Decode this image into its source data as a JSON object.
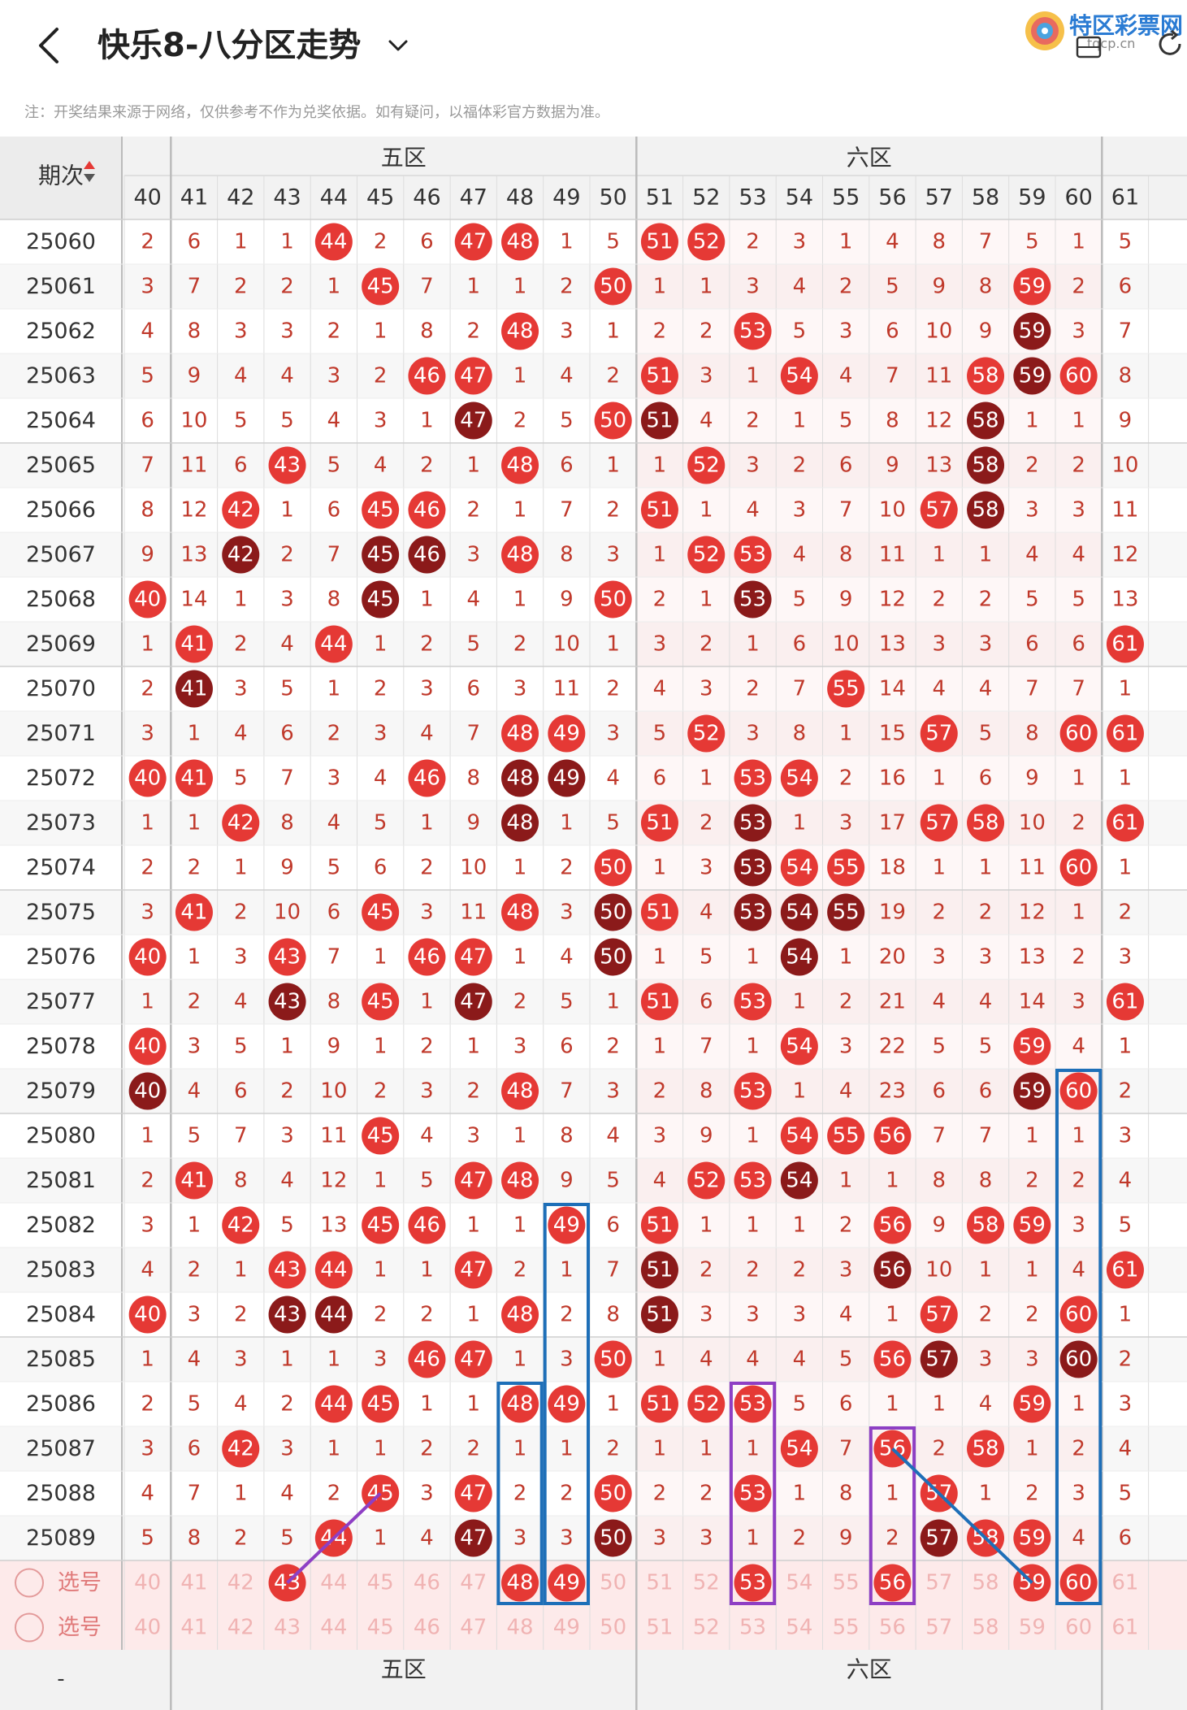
{
  "header": {
    "title": "快乐8-八分区走势",
    "back_icon": "chevron-left-icon",
    "dropdown_icon": "chevron-down-icon",
    "logo_text": "特区彩票网",
    "logo_sub": "tqcp.cn",
    "share_icon": "share-icon",
    "refresh_icon": "refresh-icon"
  },
  "note": "注：开奖结果来源于网络，仅供参考不作为兑奖依据。如有疑问，以福体彩官方数据为准。",
  "table": {
    "issue_header": "期次",
    "zone5_label": "五区",
    "zone6_label": "六区",
    "select_label": "选号",
    "footer_dash": "-",
    "columns": [
      40,
      41,
      42,
      43,
      44,
      45,
      46,
      47,
      48,
      49,
      50,
      51,
      52,
      53,
      54,
      55,
      56,
      57,
      58,
      59,
      60,
      61
    ],
    "rows": [
      {
        "issue": "25060",
        "vals": [
          2,
          6,
          1,
          1,
          44,
          2,
          6,
          47,
          48,
          1,
          5,
          51,
          52,
          2,
          3,
          1,
          4,
          8,
          7,
          5,
          1,
          5
        ]
      },
      {
        "issue": "25061",
        "vals": [
          3,
          7,
          2,
          2,
          1,
          45,
          7,
          1,
          1,
          2,
          50,
          1,
          1,
          3,
          4,
          2,
          5,
          9,
          8,
          59,
          2,
          6
        ]
      },
      {
        "issue": "25062",
        "vals": [
          4,
          8,
          3,
          3,
          2,
          1,
          8,
          2,
          48,
          3,
          1,
          2,
          2,
          53,
          5,
          3,
          6,
          10,
          9,
          59,
          3,
          7
        ]
      },
      {
        "issue": "25063",
        "vals": [
          5,
          9,
          4,
          4,
          3,
          2,
          46,
          47,
          1,
          4,
          2,
          51,
          3,
          1,
          54,
          4,
          7,
          11,
          58,
          59,
          60,
          8
        ]
      },
      {
        "issue": "25064",
        "vals": [
          6,
          10,
          5,
          5,
          4,
          3,
          1,
          47,
          2,
          5,
          50,
          51,
          4,
          2,
          1,
          5,
          8,
          12,
          58,
          1,
          1,
          9
        ]
      },
      {
        "issue": "25065",
        "vals": [
          7,
          11,
          6,
          43,
          5,
          4,
          2,
          1,
          48,
          6,
          1,
          1,
          52,
          3,
          2,
          6,
          9,
          13,
          58,
          2,
          2,
          10
        ]
      },
      {
        "issue": "25066",
        "vals": [
          8,
          12,
          42,
          1,
          6,
          45,
          46,
          2,
          1,
          7,
          2,
          51,
          1,
          4,
          3,
          7,
          10,
          57,
          58,
          3,
          3,
          11
        ]
      },
      {
        "issue": "25067",
        "vals": [
          9,
          13,
          42,
          2,
          7,
          45,
          46,
          3,
          48,
          8,
          3,
          1,
          52,
          53,
          4,
          8,
          11,
          1,
          1,
          4,
          4,
          12
        ]
      },
      {
        "issue": "25068",
        "vals": [
          40,
          14,
          1,
          3,
          8,
          45,
          1,
          4,
          1,
          9,
          50,
          2,
          1,
          53,
          5,
          9,
          12,
          2,
          2,
          5,
          5,
          13
        ]
      },
      {
        "issue": "25069",
        "vals": [
          1,
          41,
          2,
          4,
          44,
          1,
          2,
          5,
          2,
          10,
          1,
          3,
          2,
          1,
          6,
          10,
          13,
          3,
          3,
          6,
          6,
          61
        ]
      },
      {
        "issue": "25070",
        "vals": [
          2,
          41,
          3,
          5,
          1,
          2,
          3,
          6,
          3,
          11,
          2,
          4,
          3,
          2,
          7,
          55,
          14,
          4,
          4,
          7,
          7,
          1
        ]
      },
      {
        "issue": "25071",
        "vals": [
          3,
          1,
          4,
          6,
          2,
          3,
          4,
          7,
          48,
          49,
          3,
          5,
          52,
          3,
          8,
          1,
          15,
          57,
          5,
          8,
          60,
          61
        ]
      },
      {
        "issue": "25072",
        "vals": [
          40,
          41,
          5,
          7,
          3,
          4,
          46,
          8,
          48,
          49,
          4,
          6,
          1,
          53,
          54,
          2,
          16,
          1,
          6,
          9,
          1,
          1
        ]
      },
      {
        "issue": "25073",
        "vals": [
          1,
          1,
          42,
          8,
          4,
          5,
          1,
          9,
          48,
          1,
          5,
          51,
          2,
          53,
          1,
          3,
          17,
          57,
          58,
          10,
          2,
          61
        ]
      },
      {
        "issue": "25074",
        "vals": [
          2,
          2,
          1,
          9,
          5,
          6,
          2,
          10,
          1,
          2,
          50,
          1,
          3,
          53,
          54,
          55,
          18,
          1,
          1,
          11,
          60,
          1
        ]
      },
      {
        "issue": "25075",
        "vals": [
          3,
          41,
          2,
          10,
          6,
          45,
          3,
          11,
          48,
          3,
          50,
          51,
          4,
          53,
          54,
          55,
          19,
          2,
          2,
          12,
          1,
          2
        ]
      },
      {
        "issue": "25076",
        "vals": [
          40,
          1,
          3,
          43,
          7,
          1,
          46,
          47,
          1,
          4,
          50,
          1,
          5,
          1,
          54,
          1,
          20,
          3,
          3,
          13,
          2,
          3
        ]
      },
      {
        "issue": "25077",
        "vals": [
          1,
          2,
          4,
          43,
          8,
          45,
          1,
          47,
          2,
          5,
          1,
          51,
          6,
          53,
          1,
          2,
          21,
          4,
          4,
          14,
          3,
          61
        ]
      },
      {
        "issue": "25078",
        "vals": [
          40,
          3,
          5,
          1,
          9,
          1,
          2,
          1,
          3,
          6,
          2,
          1,
          7,
          1,
          54,
          3,
          22,
          5,
          5,
          59,
          4,
          1
        ]
      },
      {
        "issue": "25079",
        "vals": [
          40,
          4,
          6,
          2,
          10,
          2,
          3,
          2,
          48,
          7,
          3,
          2,
          8,
          53,
          1,
          4,
          23,
          6,
          6,
          59,
          60,
          2
        ]
      },
      {
        "issue": "25080",
        "vals": [
          1,
          5,
          7,
          3,
          11,
          45,
          4,
          3,
          1,
          8,
          4,
          3,
          9,
          1,
          54,
          55,
          56,
          7,
          7,
          1,
          1,
          3
        ]
      },
      {
        "issue": "25081",
        "vals": [
          2,
          41,
          8,
          4,
          12,
          1,
          5,
          47,
          48,
          9,
          5,
          4,
          52,
          53,
          54,
          1,
          1,
          8,
          8,
          2,
          2,
          4
        ]
      },
      {
        "issue": "25082",
        "vals": [
          3,
          1,
          42,
          5,
          13,
          45,
          46,
          1,
          1,
          49,
          6,
          51,
          1,
          1,
          1,
          2,
          56,
          9,
          58,
          59,
          3,
          5
        ]
      },
      {
        "issue": "25083",
        "vals": [
          4,
          2,
          1,
          43,
          44,
          1,
          1,
          47,
          2,
          1,
          7,
          51,
          2,
          2,
          2,
          3,
          56,
          10,
          1,
          1,
          4,
          61
        ]
      },
      {
        "issue": "25084",
        "vals": [
          40,
          3,
          2,
          43,
          44,
          2,
          2,
          1,
          48,
          2,
          8,
          51,
          3,
          3,
          3,
          4,
          1,
          57,
          2,
          2,
          60,
          1
        ]
      },
      {
        "issue": "25085",
        "vals": [
          1,
          4,
          3,
          1,
          1,
          3,
          46,
          47,
          1,
          3,
          50,
          1,
          4,
          4,
          4,
          5,
          56,
          57,
          3,
          3,
          60,
          2
        ]
      },
      {
        "issue": "25086",
        "vals": [
          2,
          5,
          4,
          2,
          44,
          45,
          1,
          1,
          48,
          49,
          1,
          51,
          52,
          53,
          5,
          6,
          1,
          1,
          4,
          59,
          1,
          3
        ]
      },
      {
        "issue": "25087",
        "vals": [
          3,
          6,
          42,
          3,
          1,
          1,
          2,
          2,
          1,
          1,
          2,
          1,
          1,
          1,
          54,
          7,
          56,
          2,
          58,
          1,
          2,
          4
        ]
      },
      {
        "issue": "25088",
        "vals": [
          4,
          7,
          1,
          4,
          2,
          45,
          3,
          47,
          2,
          2,
          50,
          2,
          2,
          53,
          1,
          8,
          1,
          57,
          1,
          2,
          3,
          5
        ]
      },
      {
        "issue": "25089",
        "vals": [
          5,
          8,
          2,
          5,
          44,
          1,
          4,
          47,
          3,
          3,
          50,
          3,
          3,
          1,
          2,
          9,
          2,
          57,
          58,
          59,
          4,
          6
        ]
      }
    ],
    "select_row1_hits": [
      43,
      48,
      49,
      53,
      56,
      59,
      60
    ],
    "colors": {
      "red_ball": "#e53935",
      "dark_ball": "#8b1a1a",
      "blue_box": "#1e6fb8",
      "purple_box": "#8e3fc4",
      "miss_text": "#c0392b",
      "header_bg": "#f2f2f2",
      "zone6_tint": "#fde9e9",
      "select_bg": "#fdeaea"
    }
  }
}
